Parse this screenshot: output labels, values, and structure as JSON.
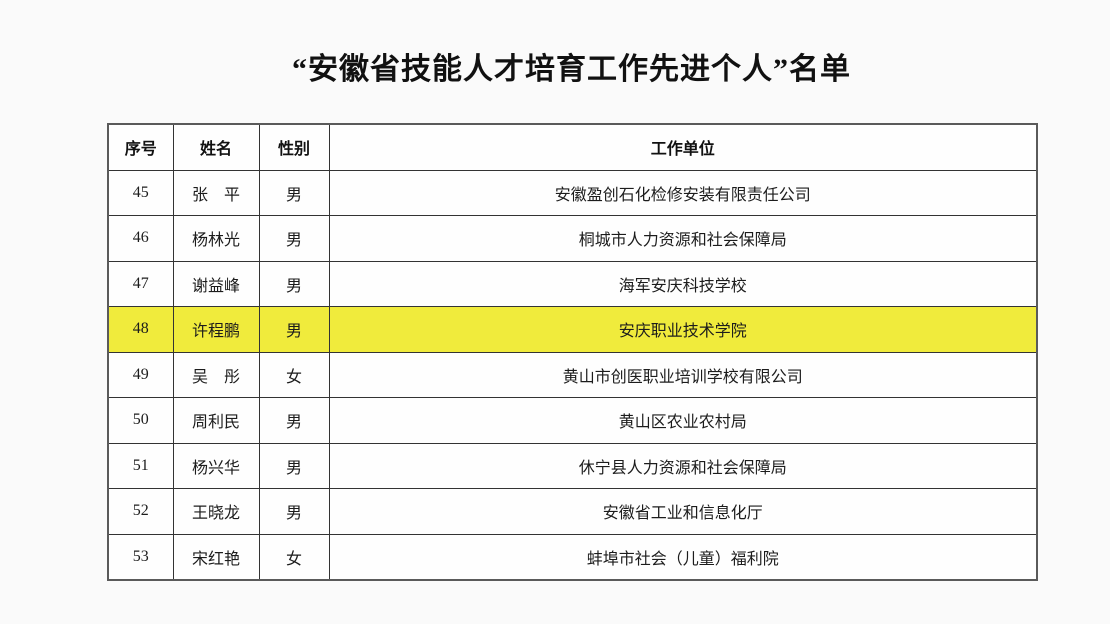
{
  "page": {
    "title": "“安徽省技能人才培育工作先进个人”名单"
  },
  "table": {
    "headers": [
      "序号",
      "姓名",
      "性别",
      "工作单位"
    ],
    "rows": [
      {
        "no": "45",
        "name": "张　平",
        "gender": "男",
        "unit": "安徽盈创石化检修安装有限责任公司",
        "highlighted": false
      },
      {
        "no": "46",
        "name": "杨林光",
        "gender": "男",
        "unit": "桐城市人力资源和社会保障局",
        "highlighted": false
      },
      {
        "no": "47",
        "name": "谢益峰",
        "gender": "男",
        "unit": "海军安庆科技学校",
        "highlighted": false
      },
      {
        "no": "48",
        "name": "许程鹏",
        "gender": "男",
        "unit": "安庆职业技术学院",
        "highlighted": true
      },
      {
        "no": "49",
        "name": "吴　彤",
        "gender": "女",
        "unit": "黄山市创医职业培训学校有限公司",
        "highlighted": false
      },
      {
        "no": "50",
        "name": "周利民",
        "gender": "男",
        "unit": "黄山区农业农村局",
        "highlighted": false
      },
      {
        "no": "51",
        "name": "杨兴华",
        "gender": "男",
        "unit": "休宁县人力资源和社会保障局",
        "highlighted": false
      },
      {
        "no": "52",
        "name": "王晓龙",
        "gender": "男",
        "unit": "安徽省工业和信息化厅",
        "highlighted": false
      },
      {
        "no": "53",
        "name": "宋红艳",
        "gender": "女",
        "unit": "蚌埠市社会（儿童）福利院",
        "highlighted": false
      }
    ]
  },
  "colors": {
    "page_background": "#fafafa",
    "cell_background": "#fefefe",
    "border": "#333333",
    "highlight": "#f0eb3c",
    "text": "#1c1c1c"
  }
}
